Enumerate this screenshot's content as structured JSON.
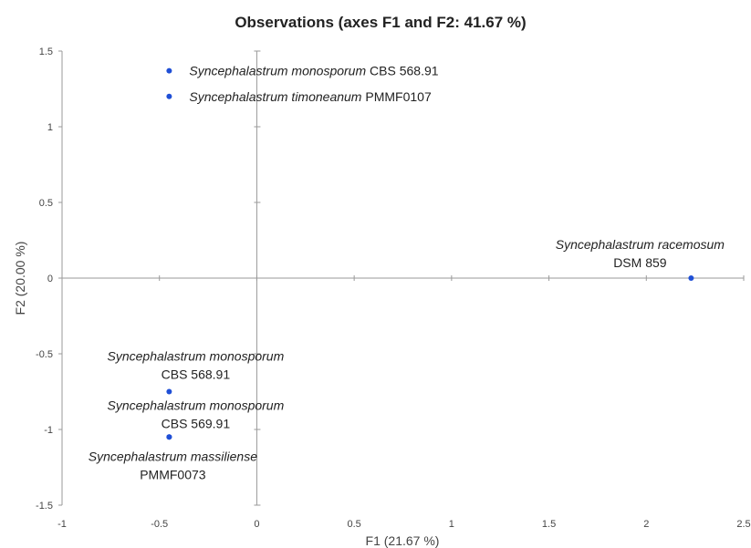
{
  "chart_data": {
    "type": "scatter",
    "title": "Observations (axes F1 and F2: 41.67 %)",
    "xlabel": "F1 (21.67 %)",
    "ylabel": "F2 (20.00 %)",
    "xlim": [
      -1,
      2.5
    ],
    "ylim": [
      -1.5,
      1.5
    ],
    "x_ticks": [
      -1,
      -0.5,
      0,
      0.5,
      1,
      1.5,
      2,
      2.5
    ],
    "x_tick_labels": [
      "-1",
      "-0.5",
      "0",
      "0.5",
      "1",
      "1.5",
      "2",
      "2.5"
    ],
    "y_ticks": [
      -1.5,
      -1,
      -0.5,
      0,
      0.5,
      1,
      1.5
    ],
    "y_tick_labels": [
      "-1.5",
      "-1",
      "-0.5",
      "0",
      "0.5",
      "1",
      "1.5"
    ],
    "grid": false,
    "marker_color": "#1f4fd6",
    "points": [
      {
        "x": -0.45,
        "y": 1.37,
        "species": "Syncephalastrum monosporum",
        "strain": "CBS 568.91"
      },
      {
        "x": -0.45,
        "y": 1.2,
        "species": "Syncephalastrum timoneanum",
        "strain": "PMMF0107"
      },
      {
        "x": 2.23,
        "y": 0.0,
        "species": "Syncephalastrum racemosum",
        "strain": "DSM 859"
      },
      {
        "x": -0.45,
        "y": -0.75,
        "species": "Syncephalastrum monosporum",
        "strain": "CBS 568.91"
      },
      {
        "x": -0.45,
        "y": -1.05,
        "species": "Syncephalastrum monosporum",
        "strain": "CBS 569.91"
      },
      {
        "x": -0.45,
        "y": -1.05,
        "species": "Syncephalastrum massiliense",
        "strain": "PMMF0073"
      }
    ]
  }
}
